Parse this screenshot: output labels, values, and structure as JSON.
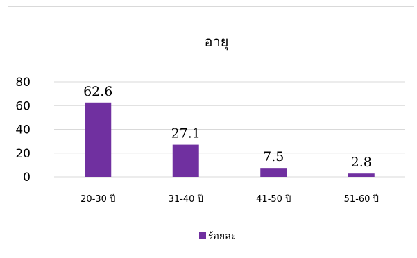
{
  "chart_data": {
    "type": "bar",
    "title": "อายุ",
    "categories": [
      "20-30 ปี",
      "31-40 ปี",
      "41-50 ปี",
      "51-60 ปี"
    ],
    "series": [
      {
        "name": "ร้อยละ",
        "values": [
          62.6,
          27.1,
          7.5,
          2.8
        ],
        "color": "#7030a0"
      }
    ],
    "ylim": [
      0,
      80
    ],
    "yticks": [
      0,
      20,
      40,
      60,
      80
    ],
    "grid": true,
    "gridline_color": "#d9d9d9",
    "data_labels": true,
    "legend": "bottom-center"
  }
}
